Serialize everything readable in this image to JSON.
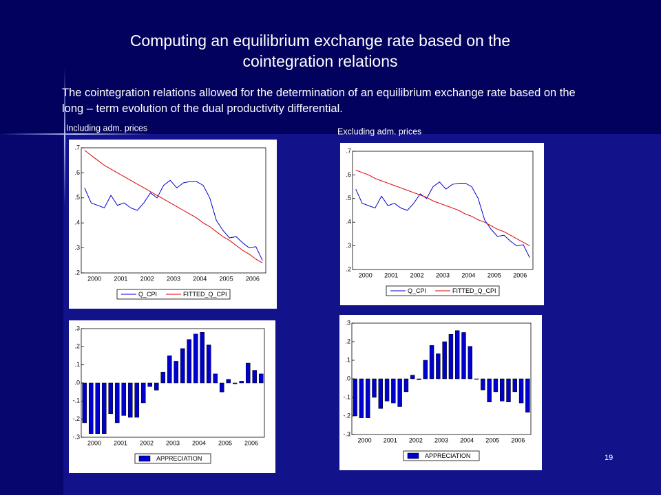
{
  "slide": {
    "title": "Computing an equilibrium exchange rate based on the cointegration relations",
    "body": "The cointegration relations allowed for the determination of an equilibrium exchange rate based on the long – term evolution of the dual productivity differential.",
    "page_number": "19"
  },
  "chart_data": [
    {
      "type": "line",
      "title": "Including adm. prices",
      "categories": [
        "2000",
        null,
        null,
        null,
        "2001",
        null,
        null,
        null,
        "2002",
        null,
        null,
        null,
        "2003",
        null,
        null,
        null,
        "2004",
        null,
        null,
        null,
        "2005",
        null,
        null,
        null,
        "2006",
        null,
        null,
        null
      ],
      "series": [
        {
          "name": "Q_CPI",
          "color": "#0000cc",
          "values": [
            0.54,
            0.48,
            0.47,
            0.46,
            0.51,
            0.47,
            0.48,
            0.46,
            0.45,
            0.48,
            0.52,
            0.5,
            0.55,
            0.57,
            0.54,
            0.56,
            0.565,
            0.565,
            0.55,
            0.5,
            0.41,
            0.37,
            0.34,
            0.345,
            0.32,
            0.3,
            0.305,
            0.25
          ]
        },
        {
          "name": "FITTED_Q_CPI",
          "color": "#dd0000",
          "values": [
            0.69,
            0.67,
            0.65,
            0.63,
            0.615,
            0.6,
            0.585,
            0.57,
            0.555,
            0.54,
            0.525,
            0.51,
            0.495,
            0.48,
            0.465,
            0.45,
            0.435,
            0.42,
            0.4,
            0.385,
            0.365,
            0.345,
            0.33,
            0.31,
            0.29,
            0.275,
            0.255,
            0.24
          ]
        }
      ],
      "ylim": [
        0.2,
        0.7
      ],
      "yticks": [
        {
          "value": 0.2,
          "label": ".2"
        },
        {
          "value": 0.3,
          "label": ".3"
        },
        {
          "value": 0.4,
          "label": ".4"
        },
        {
          "value": 0.5,
          "label": ".5"
        },
        {
          "value": 0.6,
          "label": ".6"
        },
        {
          "value": 0.7,
          "label": ".7"
        }
      ]
    },
    {
      "type": "line",
      "title": "Excluding adm. prices",
      "categories": [
        "2000",
        null,
        null,
        null,
        "2001",
        null,
        null,
        null,
        "2002",
        null,
        null,
        null,
        "2003",
        null,
        null,
        null,
        "2004",
        null,
        null,
        null,
        "2005",
        null,
        null,
        null,
        "2006",
        null,
        null,
        null
      ],
      "series": [
        {
          "name": "Q_CPI",
          "color": "#0000cc",
          "values": [
            0.54,
            0.48,
            0.47,
            0.46,
            0.51,
            0.47,
            0.48,
            0.46,
            0.45,
            0.48,
            0.52,
            0.5,
            0.55,
            0.57,
            0.54,
            0.56,
            0.565,
            0.565,
            0.55,
            0.5,
            0.41,
            0.37,
            0.34,
            0.345,
            0.32,
            0.3,
            0.305,
            0.25
          ]
        },
        {
          "name": "FITTED_Q_CPI",
          "color": "#dd0000",
          "values": [
            0.62,
            0.61,
            0.6,
            0.585,
            0.575,
            0.565,
            0.555,
            0.545,
            0.535,
            0.525,
            0.515,
            0.505,
            0.49,
            0.48,
            0.47,
            0.46,
            0.45,
            0.435,
            0.425,
            0.41,
            0.4,
            0.385,
            0.37,
            0.36,
            0.345,
            0.33,
            0.315,
            0.3
          ]
        }
      ],
      "ylim": [
        0.2,
        0.7
      ],
      "yticks": [
        {
          "value": 0.2,
          "label": ".2"
        },
        {
          "value": 0.3,
          "label": ".3"
        },
        {
          "value": 0.4,
          "label": ".4"
        },
        {
          "value": 0.5,
          "label": ".5"
        },
        {
          "value": 0.6,
          "label": ".6"
        },
        {
          "value": 0.7,
          "label": ".7"
        }
      ]
    },
    {
      "type": "bar",
      "categories": [
        "2000",
        null,
        null,
        null,
        "2001",
        null,
        null,
        null,
        "2002",
        null,
        null,
        null,
        "2003",
        null,
        null,
        null,
        "2004",
        null,
        null,
        null,
        "2005",
        null,
        null,
        null,
        "2006",
        null,
        null,
        null
      ],
      "series": [
        {
          "name": "APPRECIATION",
          "color": "#0000cc",
          "values": [
            -0.22,
            -0.28,
            -0.28,
            -0.28,
            -0.17,
            -0.22,
            -0.18,
            -0.19,
            -0.19,
            -0.11,
            -0.02,
            -0.04,
            0.06,
            0.15,
            0.12,
            0.19,
            0.24,
            0.27,
            0.28,
            0.21,
            0.05,
            -0.05,
            0.02,
            -0.005,
            0.01,
            0.11,
            0.07,
            0.05
          ]
        }
      ],
      "ylim": [
        -0.3,
        0.3
      ],
      "yticks": [
        {
          "value": -0.3,
          "label": "-.3"
        },
        {
          "value": -0.2,
          "label": "-.2"
        },
        {
          "value": -0.1,
          "label": "-.1"
        },
        {
          "value": 0,
          "label": ".0"
        },
        {
          "value": 0.1,
          "label": ".1"
        },
        {
          "value": 0.2,
          "label": ".2"
        },
        {
          "value": 0.3,
          "label": ".3"
        }
      ]
    },
    {
      "type": "bar",
      "categories": [
        "2000",
        null,
        null,
        null,
        "2001",
        null,
        null,
        null,
        "2002",
        null,
        null,
        null,
        "2003",
        null,
        null,
        null,
        "2004",
        null,
        null,
        null,
        "2005",
        null,
        null,
        null,
        "2006",
        null,
        null,
        null
      ],
      "series": [
        {
          "name": "APPRECIATION",
          "color": "#0000cc",
          "values": [
            -0.2,
            -0.21,
            -0.21,
            -0.1,
            -0.16,
            -0.12,
            -0.13,
            -0.15,
            -0.07,
            0.02,
            -0.005,
            0.1,
            0.18,
            0.135,
            0.2,
            0.24,
            0.26,
            0.25,
            0.175,
            0.0,
            -0.06,
            -0.125,
            -0.07,
            -0.12,
            -0.125,
            -0.07,
            -0.13,
            -0.18
          ]
        }
      ],
      "ylim": [
        -0.3,
        0.3
      ],
      "yticks": [
        {
          "value": -0.3,
          "label": "-.3"
        },
        {
          "value": -0.2,
          "label": "-.2"
        },
        {
          "value": -0.1,
          "label": "-.1"
        },
        {
          "value": 0,
          "label": ".0"
        },
        {
          "value": 0.1,
          "label": ".1"
        },
        {
          "value": 0.2,
          "label": ".2"
        },
        {
          "value": 0.3,
          "label": ".3"
        }
      ]
    }
  ]
}
